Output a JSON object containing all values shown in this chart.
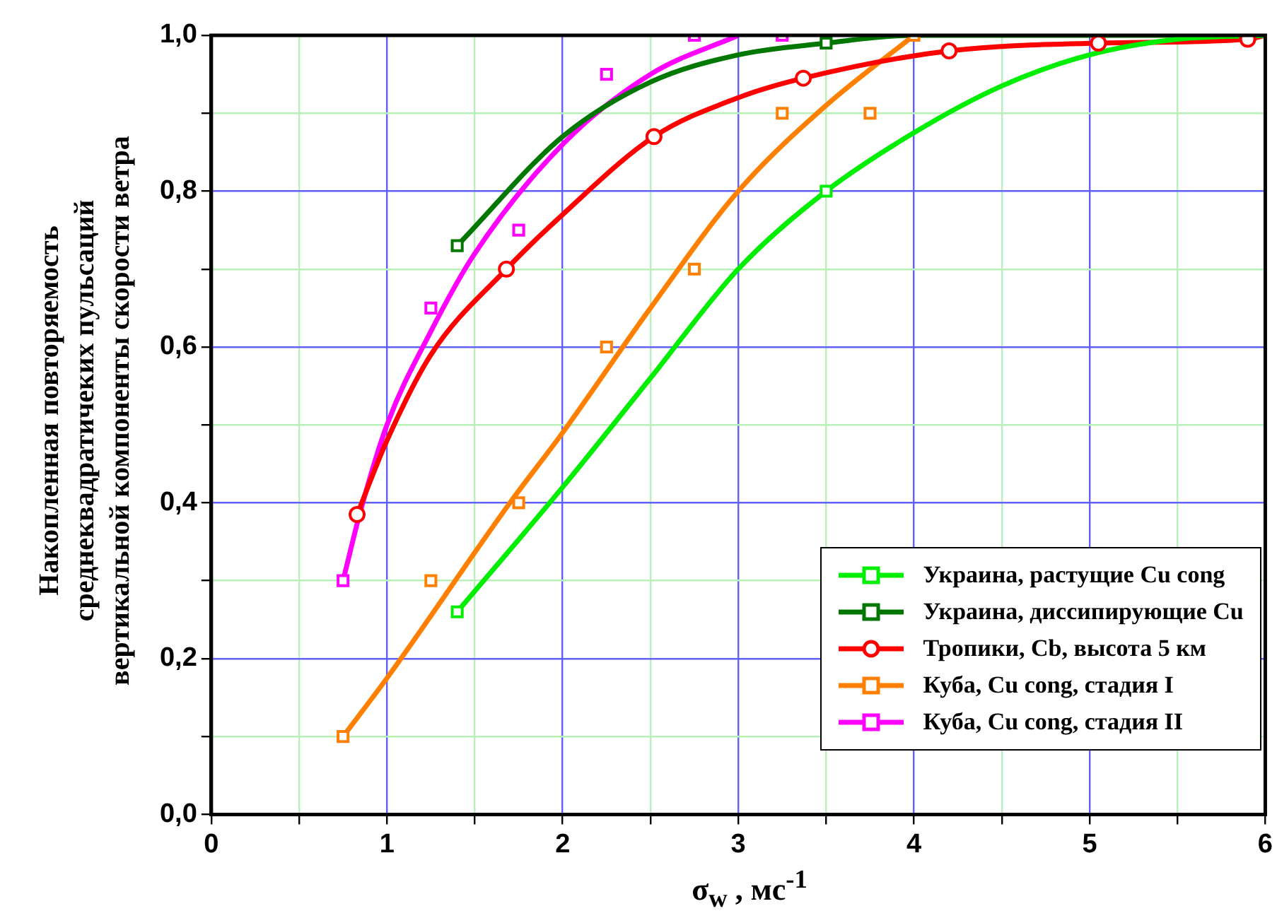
{
  "chart_data": {
    "type": "scatter",
    "xlabel": "σ$_{w}$ , мс$^{-1}$",
    "ylabel": "Накопленная повторяемость\nсреднеквадратичеких пульсаций\nвертикальной компоненты скорости ветра",
    "xlim": [
      0,
      6
    ],
    "ylim": [
      0,
      1
    ],
    "xticks": [
      0,
      {
        "value": 0.5,
        "label": null
      },
      1,
      {
        "value": 1.5,
        "label": null
      },
      2,
      {
        "value": 2.5,
        "label": null
      },
      3,
      {
        "value": 3.5,
        "label": null
      },
      4,
      {
        "value": 4.5,
        "label": null
      },
      5,
      {
        "value": 5.5,
        "label": null
      },
      6
    ],
    "yticks": [
      {
        "value": 0,
        "label": "0,0"
      },
      {
        "value": 0.1,
        "label": null
      },
      {
        "value": 0.2,
        "label": "0,2"
      },
      {
        "value": 0.3,
        "label": null
      },
      {
        "value": 0.4,
        "label": "0,4"
      },
      {
        "value": 0.5,
        "label": null
      },
      {
        "value": 0.6,
        "label": "0,6"
      },
      {
        "value": 0.7,
        "label": null
      },
      {
        "value": 0.8,
        "label": "0,8"
      },
      {
        "value": 0.9,
        "label": null
      },
      {
        "value": 1,
        "label": "1,0"
      }
    ],
    "grid": true,
    "legend": "bottom right",
    "series": [
      {
        "name": "Украина, растущие Cu cong",
        "color": "#00ee00",
        "marker": "square",
        "x": [
          1.4,
          3.5
        ],
        "values": [
          0.26,
          0.8
        ]
      },
      {
        "name": "Украина, диссипирующие Cu",
        "color": "#007700",
        "marker": "square",
        "x": [
          1.4,
          3.5
        ],
        "values": [
          0.73,
          0.99
        ]
      },
      {
        "name": "Тропики, Cb, высота 5 км",
        "color": "#ff0000",
        "marker": "circle",
        "x": [
          0.83,
          1.68,
          2.52,
          3.37,
          4.2,
          5.05,
          5.9
        ],
        "values": [
          0.385,
          0.7,
          0.87,
          0.945,
          0.98,
          0.99,
          0.995
        ]
      },
      {
        "name": "Куба, Cu cong, стадия I",
        "color": "#ff8000",
        "marker": "square",
        "x": [
          0.75,
          1.25,
          1.75,
          2.25,
          2.75,
          3.25,
          3.75,
          4.0
        ],
        "values": [
          0.1,
          0.3,
          0.4,
          0.6,
          0.7,
          0.9,
          0.9,
          1.0
        ]
      },
      {
        "name": "Куба, Cu cong, стадия II",
        "color": "#ff00ff",
        "marker": "square",
        "x": [
          0.75,
          1.25,
          1.75,
          2.25,
          2.75,
          3.25
        ],
        "values": [
          0.3,
          0.65,
          0.75,
          0.95,
          1.0,
          1.0
        ]
      },
      {
        "type": "line",
        "color": "#00ee00",
        "marker": "none",
        "x": [
          1.4,
          2.0,
          2.5,
          3.0,
          3.5,
          4.0,
          4.5,
          5.0,
          5.5,
          6.0
        ],
        "values": [
          0.26,
          0.42,
          0.56,
          0.7,
          0.8,
          0.875,
          0.935,
          0.975,
          0.995,
          1.0
        ]
      },
      {
        "type": "line",
        "color": "#007700",
        "marker": "none",
        "x": [
          1.4,
          2.0,
          2.5,
          3.0,
          3.5,
          4.0,
          5.0,
          6.0
        ],
        "values": [
          0.73,
          0.87,
          0.94,
          0.975,
          0.99,
          1.0,
          1.0,
          1.0
        ]
      },
      {
        "type": "line",
        "color": "#ff0000",
        "marker": "none",
        "x": [
          0.83,
          1.0,
          1.25,
          1.68,
          2.0,
          2.52,
          3.0,
          3.37,
          4.2,
          5.05,
          5.9,
          6.0
        ],
        "values": [
          0.385,
          0.48,
          0.59,
          0.7,
          0.77,
          0.87,
          0.92,
          0.945,
          0.98,
          0.99,
          0.995,
          1.0
        ]
      },
      {
        "type": "line",
        "color": "#ff8000",
        "marker": "none",
        "x": [
          0.75,
          1.0,
          1.7,
          2.0,
          2.5,
          3.0,
          3.5,
          4.0
        ],
        "values": [
          0.1,
          0.175,
          0.4,
          0.49,
          0.65,
          0.8,
          0.91,
          1.0
        ]
      },
      {
        "type": "line",
        "color": "#ff00ff",
        "marker": "none",
        "x": [
          0.75,
          0.85,
          1.0,
          1.25,
          1.5,
          2.0,
          2.5,
          3.0
        ],
        "values": [
          0.3,
          0.39,
          0.5,
          0.62,
          0.72,
          0.86,
          0.95,
          1.0
        ]
      }
    ]
  }
}
